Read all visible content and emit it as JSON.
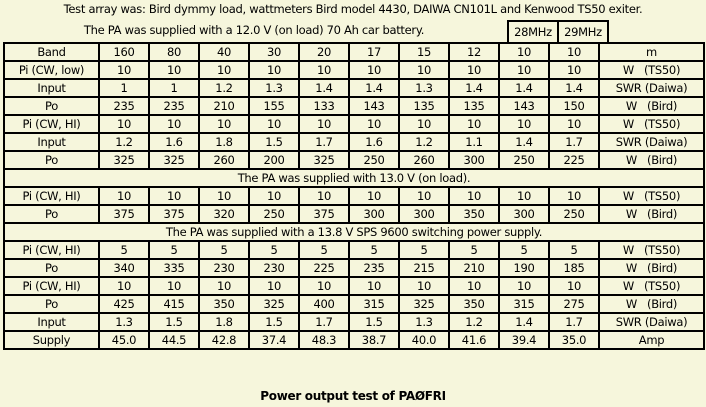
{
  "header": {
    "line1": "Test array was: Bird dymmy load, wattmeters Bird model 4430, DAIWA CN101L and Kenwood TS50 exiter.",
    "line2": "The PA was supplied with a 12.0 V (on load) 70 Ah car battery.",
    "freq_28": "28MHz",
    "freq_29": "29MHz"
  },
  "rows": [
    {
      "type": "data",
      "label": "Band",
      "values": [
        "160",
        "80",
        "40",
        "30",
        "20",
        "17",
        "15",
        "12",
        "10",
        "10"
      ],
      "unit": "m"
    },
    {
      "type": "data",
      "label": "Pi (CW, low)",
      "values": [
        "10",
        "10",
        "10",
        "10",
        "10",
        "10",
        "10",
        "10",
        "10",
        "10"
      ],
      "unit": "W   (TS50)"
    },
    {
      "type": "data",
      "label": "Input",
      "values": [
        "1",
        "1",
        "1.2",
        "1.3",
        "1.4",
        "1.4",
        "1.3",
        "1.4",
        "1.4",
        "1.4"
      ],
      "unit": "SWR (Daiwa)"
    },
    {
      "type": "data",
      "label": "Po",
      "values": [
        "235",
        "235",
        "210",
        "155",
        "133",
        "143",
        "135",
        "135",
        "143",
        "150"
      ],
      "unit": "W   (Bird)"
    },
    {
      "type": "data",
      "label": "Pi (CW, HI)",
      "values": [
        "10",
        "10",
        "10",
        "10",
        "10",
        "10",
        "10",
        "10",
        "10",
        "10"
      ],
      "unit": "W   (TS50)"
    },
    {
      "type": "data",
      "label": "Input",
      "values": [
        "1.2",
        "1.6",
        "1.8",
        "1.5",
        "1.7",
        "1.6",
        "1.2",
        "1.1",
        "1.4",
        "1.7"
      ],
      "unit": "SWR (Daiwa)"
    },
    {
      "type": "data",
      "label": "Po",
      "values": [
        "325",
        "325",
        "260",
        "200",
        "325",
        "250",
        "260",
        "300",
        "250",
        "225"
      ],
      "unit": "W   (Bird)"
    },
    {
      "type": "note",
      "text": "The PA was supplied with 13.0 V (on load)."
    },
    {
      "type": "data",
      "label": "Pi (CW, HI)",
      "values": [
        "10",
        "10",
        "10",
        "10",
        "10",
        "10",
        "10",
        "10",
        "10",
        "10"
      ],
      "unit": "W   (TS50)"
    },
    {
      "type": "data",
      "label": "Po",
      "values": [
        "375",
        "375",
        "320",
        "250",
        "375",
        "300",
        "300",
        "350",
        "300",
        "250"
      ],
      "unit": "W   (Bird)"
    },
    {
      "type": "note",
      "text": "The PA was supplied with a 13.8 V SPS 9600 switching power supply."
    },
    {
      "type": "data",
      "label": "Pi (CW, HI)",
      "values": [
        "5",
        "5",
        "5",
        "5",
        "5",
        "5",
        "5",
        "5",
        "5",
        "5"
      ],
      "unit": "W   (TS50)"
    },
    {
      "type": "data",
      "label": "Po",
      "values": [
        "340",
        "335",
        "230",
        "230",
        "225",
        "235",
        "215",
        "210",
        "190",
        "185"
      ],
      "unit": "W   (Bird)"
    },
    {
      "type": "data",
      "label": "Pi (CW, HI)",
      "values": [
        "10",
        "10",
        "10",
        "10",
        "10",
        "10",
        "10",
        "10",
        "10",
        "10"
      ],
      "unit": "W   (TS50)"
    },
    {
      "type": "data",
      "label": "Po",
      "values": [
        "425",
        "415",
        "350",
        "325",
        "400",
        "315",
        "325",
        "350",
        "315",
        "275"
      ],
      "unit": "W   (Bird)"
    },
    {
      "type": "data",
      "label": "Input",
      "values": [
        "1.3",
        "1.5",
        "1.8",
        "1.5",
        "1.7",
        "1.5",
        "1.3",
        "1.2",
        "1.4",
        "1.7"
      ],
      "unit": "SWR (Daiwa)"
    },
    {
      "type": "data",
      "label": "Supply",
      "values": [
        "45.0",
        "44.5",
        "42.8",
        "37.4",
        "48.3",
        "38.7",
        "40.0",
        "41.6",
        "39.4",
        "35.0"
      ],
      "unit": "Amp"
    }
  ],
  "caption": "Power output test of PAØFRI"
}
